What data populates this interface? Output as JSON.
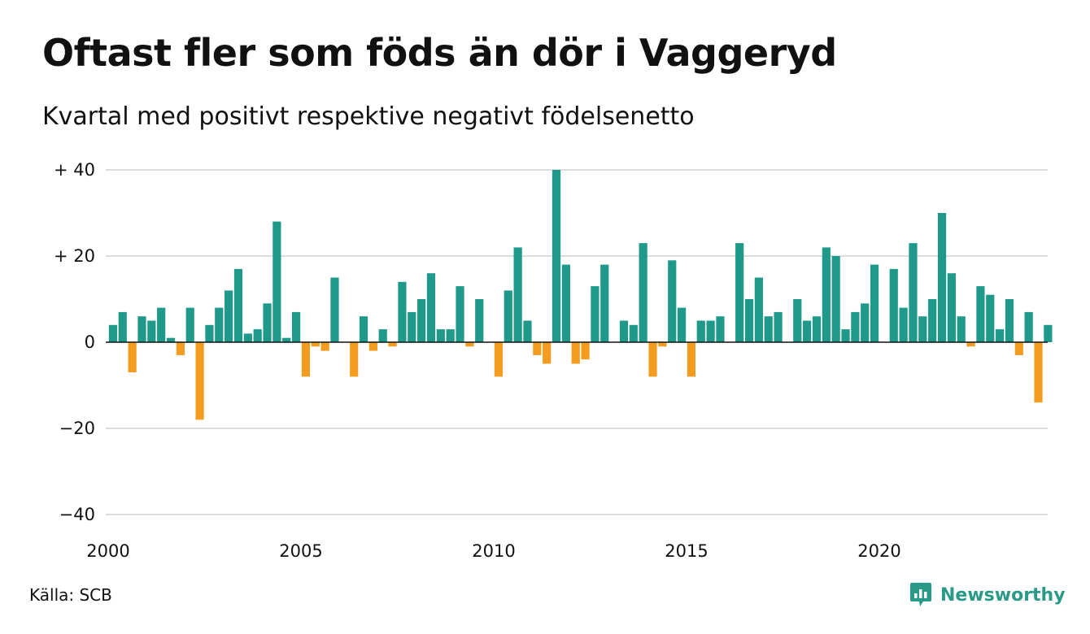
{
  "title": "Oftast fler som föds än dör i Vaggeryd",
  "subtitle": "Kvartal med positivt respektive negativt födelsenetto",
  "source": "Källa: SCB",
  "brand": {
    "name": "Newsworthy",
    "icon": "newsworthy-logo-icon",
    "color": "#2a9a88"
  },
  "chart_data": {
    "type": "bar",
    "title": "Oftast fler som föds än dör i Vaggeryd",
    "subtitle": "Kvartal med positivt respektive negativt födelsenetto",
    "x_start_year": 2000,
    "periods_per_year": 4,
    "x_ticks": [
      2000,
      2005,
      2010,
      2015,
      2020
    ],
    "x_tick_labels": [
      "2000",
      "2005",
      "2010",
      "2015",
      "2020"
    ],
    "y_ticks": [
      40,
      20,
      0,
      -20,
      -40
    ],
    "y_tick_labels": [
      "+ 40",
      "+ 20",
      "0",
      "−20",
      "−40"
    ],
    "ylim": [
      -40,
      40
    ],
    "grid": true,
    "colors": {
      "positive": "#1f9a8a",
      "negative": "#f39c1f",
      "grid": "#dddddd",
      "zero": "#111111"
    },
    "values": [
      4,
      7,
      -7,
      6,
      5,
      8,
      1,
      -3,
      8,
      -18,
      4,
      8,
      12,
      17,
      2,
      3,
      9,
      28,
      1,
      7,
      -8,
      -1,
      -2,
      15,
      0,
      -8,
      6,
      -2,
      3,
      -1,
      14,
      7,
      10,
      16,
      3,
      3,
      13,
      -1,
      10,
      0,
      -8,
      12,
      22,
      5,
      -3,
      -5,
      40,
      18,
      -5,
      -4,
      13,
      18,
      0,
      5,
      4,
      23,
      -8,
      -1,
      19,
      8,
      -8,
      5,
      5,
      6,
      0,
      23,
      10,
      15,
      6,
      7,
      0,
      10,
      5,
      6,
      22,
      20,
      3,
      7,
      9,
      18,
      0,
      17,
      8,
      23,
      6,
      10,
      30,
      16,
      6,
      -1,
      13,
      11,
      3,
      10,
      -3,
      7,
      -14,
      4
    ]
  }
}
